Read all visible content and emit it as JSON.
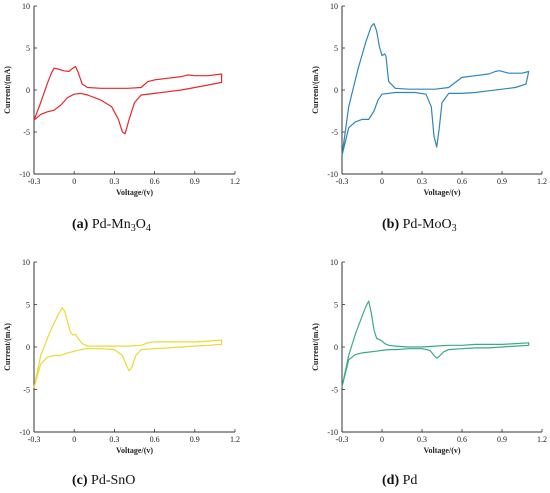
{
  "chart_data": [
    {
      "type": "line",
      "panel": "a",
      "caption_letter": "(a)",
      "caption_text": " Pd-Mn",
      "caption_sub1": "3",
      "caption_mid": "O",
      "caption_sub2": "4",
      "xlabel": "Voltage/(v)",
      "ylabel": "Current/(mA)",
      "xlim": [
        -0.3,
        1.2
      ],
      "ylim": [
        -10,
        10
      ],
      "xticks": [
        "-0.3",
        "0",
        "0.3",
        "0.6",
        "0.9",
        "1.2"
      ],
      "yticks": [
        "10",
        "5",
        "0",
        "-5",
        "-10"
      ],
      "color": "#e8262b",
      "series": [
        {
          "x": [
            -0.3,
            -0.25,
            -0.2,
            -0.17,
            -0.15,
            -0.12,
            -0.08,
            -0.04,
            -0.01,
            0.01,
            0.03,
            0.06,
            0.1,
            0.2,
            0.3,
            0.4,
            0.5,
            0.52,
            0.55,
            0.6,
            0.7,
            0.8,
            0.85,
            0.9,
            1.0,
            1.1,
            1.1,
            1.0,
            0.9,
            0.8,
            0.7,
            0.6,
            0.5,
            0.45,
            0.41,
            0.38,
            0.36,
            0.33,
            0.28,
            0.2,
            0.1,
            0.05,
            0.0,
            -0.05,
            -0.1,
            -0.15,
            -0.2,
            -0.25,
            -0.3
          ],
          "y": [
            -3.6,
            -1.5,
            0.8,
            2.0,
            2.6,
            2.5,
            2.3,
            2.2,
            2.6,
            2.8,
            2.1,
            0.7,
            0.3,
            0.2,
            0.2,
            0.2,
            0.3,
            0.6,
            1.0,
            1.2,
            1.4,
            1.6,
            1.8,
            1.7,
            1.7,
            1.9,
            0.9,
            0.6,
            0.3,
            0.0,
            -0.2,
            -0.4,
            -0.6,
            -1.5,
            -3.5,
            -5.2,
            -5.0,
            -3.5,
            -2.0,
            -1.2,
            -0.6,
            -0.4,
            -0.5,
            -0.9,
            -1.8,
            -2.4,
            -2.6,
            -2.9,
            -3.6
          ]
        }
      ]
    },
    {
      "type": "line",
      "panel": "b",
      "caption_letter": "(b)",
      "caption_text": " Pd-MoO",
      "caption_sub1": "3",
      "caption_mid": "",
      "caption_sub2": "",
      "xlabel": "Voltage/(v)",
      "ylabel": "Current/(mA)",
      "xlim": [
        -0.3,
        1.2
      ],
      "ylim": [
        -10,
        10
      ],
      "xticks": [
        "-0.3",
        "0",
        "0.3",
        "0.6",
        "0.9",
        "1.2"
      ],
      "yticks": [
        "10",
        "5",
        "0",
        "-5",
        "-10"
      ],
      "color": "#2f86b7",
      "series": [
        {
          "x": [
            -0.3,
            -0.25,
            -0.18,
            -0.12,
            -0.08,
            -0.06,
            -0.04,
            -0.02,
            0.0,
            0.02,
            0.03,
            0.04,
            0.05,
            0.1,
            0.2,
            0.3,
            0.4,
            0.5,
            0.55,
            0.6,
            0.7,
            0.8,
            0.85,
            0.88,
            0.95,
            1.05,
            1.1,
            1.08,
            1.0,
            0.9,
            0.8,
            0.7,
            0.6,
            0.5,
            0.45,
            0.43,
            0.41,
            0.39,
            0.37,
            0.33,
            0.25,
            0.1,
            0.0,
            -0.03,
            -0.06,
            -0.1,
            -0.15,
            -0.2,
            -0.25,
            -0.3
          ],
          "y": [
            -7.8,
            -2.0,
            2.5,
            5.8,
            7.6,
            7.9,
            7.0,
            5.2,
            4.1,
            4.3,
            4.0,
            2.5,
            1.0,
            0.2,
            0.1,
            0.1,
            0.1,
            0.3,
            0.9,
            1.5,
            1.7,
            1.9,
            2.2,
            2.3,
            2.0,
            2.0,
            2.2,
            0.7,
            0.3,
            0.1,
            -0.1,
            -0.3,
            -0.4,
            -0.4,
            -1.5,
            -4.5,
            -6.8,
            -5.5,
            -2.0,
            -0.5,
            -0.3,
            -0.3,
            -0.5,
            -1.2,
            -2.5,
            -3.5,
            -3.5,
            -3.8,
            -4.5,
            -7.8
          ]
        }
      ]
    },
    {
      "type": "line",
      "panel": "c",
      "caption_letter": "(c)",
      "caption_text": " Pd-SnO",
      "caption_sub1": "",
      "caption_mid": "",
      "caption_sub2": "",
      "xlabel": "Voltage/(v)",
      "ylabel": "Current/(mA)",
      "xlim": [
        -0.3,
        1.2
      ],
      "ylim": [
        -10,
        10
      ],
      "xticks": [
        "-0.3",
        "0",
        "0.3",
        "0.6",
        "0.9",
        "1.2"
      ],
      "yticks": [
        "10",
        "5",
        "0",
        "-5",
        "-10"
      ],
      "color": "#e8d93a",
      "series": [
        {
          "x": [
            -0.3,
            -0.25,
            -0.18,
            -0.12,
            -0.09,
            -0.07,
            -0.05,
            -0.03,
            -0.01,
            0.01,
            0.03,
            0.06,
            0.1,
            0.2,
            0.3,
            0.4,
            0.5,
            0.55,
            0.6,
            0.7,
            0.8,
            0.9,
            1.0,
            1.1,
            1.1,
            1.0,
            0.9,
            0.8,
            0.7,
            0.6,
            0.5,
            0.46,
            0.43,
            0.41,
            0.39,
            0.36,
            0.3,
            0.2,
            0.1,
            0.05,
            0.0,
            -0.05,
            -0.1,
            -0.15,
            -0.2,
            -0.25,
            -0.3
          ],
          "y": [
            -4.8,
            -1.0,
            1.8,
            3.8,
            4.6,
            4.2,
            3.0,
            1.8,
            1.4,
            1.5,
            1.0,
            0.4,
            0.1,
            0.1,
            0.1,
            0.1,
            0.2,
            0.5,
            0.6,
            0.6,
            0.6,
            0.6,
            0.7,
            0.8,
            0.3,
            0.2,
            0.1,
            0.0,
            -0.1,
            -0.2,
            -0.3,
            -1.0,
            -2.4,
            -2.8,
            -2.2,
            -1.0,
            -0.3,
            -0.2,
            -0.2,
            -0.3,
            -0.5,
            -0.7,
            -1.0,
            -1.0,
            -1.2,
            -2.0,
            -4.8
          ]
        }
      ]
    },
    {
      "type": "line",
      "panel": "d",
      "caption_letter": "(d)",
      "caption_text": " Pd",
      "caption_sub1": "",
      "caption_mid": "",
      "caption_sub2": "",
      "xlabel": "Voltage/(v)",
      "ylabel": "Current/(mA)",
      "xlim": [
        -0.3,
        1.2
      ],
      "ylim": [
        -10,
        10
      ],
      "xticks": [
        "-0.3",
        "0",
        "0.3",
        "0.6",
        "0.9",
        "1.2"
      ],
      "yticks": [
        "10",
        "5",
        "0",
        "-5",
        "-10"
      ],
      "color": "#3aa98a",
      "series": [
        {
          "x": [
            -0.3,
            -0.25,
            -0.2,
            -0.15,
            -0.12,
            -0.1,
            -0.08,
            -0.06,
            -0.04,
            -0.02,
            0.0,
            0.02,
            0.05,
            0.1,
            0.2,
            0.3,
            0.4,
            0.5,
            0.6,
            0.7,
            0.8,
            0.9,
            1.0,
            1.1,
            1.1,
            1.0,
            0.9,
            0.8,
            0.7,
            0.6,
            0.5,
            0.46,
            0.43,
            0.41,
            0.39,
            0.36,
            0.3,
            0.2,
            0.1,
            0.05,
            0.0,
            -0.05,
            -0.1,
            -0.15,
            -0.2,
            -0.25,
            -0.3
          ],
          "y": [
            -4.7,
            -1.0,
            1.5,
            3.6,
            4.8,
            5.4,
            4.0,
            2.0,
            1.0,
            0.9,
            0.7,
            0.4,
            0.2,
            0.1,
            0.0,
            0.0,
            0.1,
            0.2,
            0.2,
            0.3,
            0.3,
            0.3,
            0.4,
            0.5,
            0.2,
            0.1,
            0.0,
            -0.1,
            -0.1,
            -0.2,
            -0.3,
            -0.6,
            -1.1,
            -1.3,
            -1.0,
            -0.4,
            -0.2,
            -0.2,
            -0.3,
            -0.3,
            -0.4,
            -0.5,
            -0.6,
            -0.7,
            -0.9,
            -1.5,
            -4.7
          ]
        }
      ]
    }
  ]
}
